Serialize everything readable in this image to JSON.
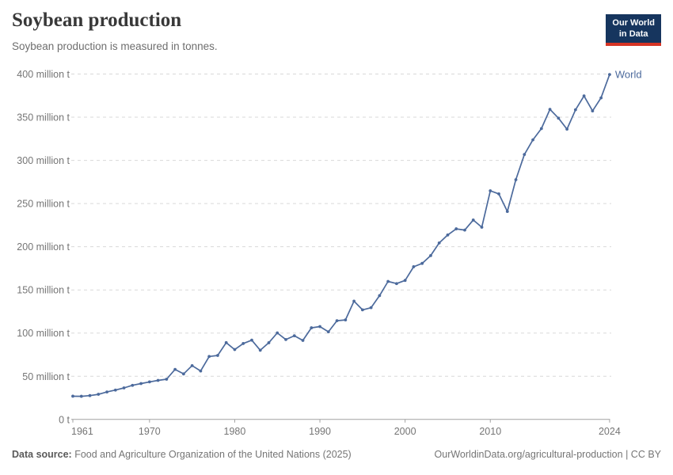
{
  "header": {
    "title": "Soybean production",
    "subtitle": "Soybean production is measured in tonnes."
  },
  "logo": {
    "line1": "Our World",
    "line2": "in Data"
  },
  "footer": {
    "source_label": "Data source:",
    "source_text": " Food and Agriculture Organization of the United Nations (2025)",
    "url": "OurWorldinData.org/agricultural-production",
    "license": " | CC BY"
  },
  "colors": {
    "line": "#4C6A9C",
    "grid": "#d9d9d9",
    "axis": "#a1a1a1",
    "tick_label": "#757575",
    "title": "#383838",
    "subtitle": "#6e6e6e",
    "logo_bg": "#16355e",
    "logo_red": "#d63424",
    "footer_text": "#757575"
  },
  "chart_data": {
    "type": "line",
    "title": "Soybean production",
    "subtitle": "Soybean production is measured in tonnes.",
    "xlabel": "",
    "ylabel": "",
    "unit": "tonnes",
    "grid": "horizontal-dashed",
    "legend": "end-of-line-label",
    "xlim": [
      1961,
      2024
    ],
    "ylim": [
      0,
      400
    ],
    "x_ticks": [
      1961,
      1970,
      1980,
      1990,
      2000,
      2010,
      2024
    ],
    "x_tick_labels": [
      "1961",
      "1970",
      "1980",
      "1990",
      "2000",
      "2010",
      "2024"
    ],
    "y_ticks": [
      0,
      50,
      100,
      150,
      200,
      250,
      300,
      350,
      400
    ],
    "y_tick_labels": [
      "0 t",
      "50 million t",
      "100 million t",
      "150 million t",
      "200 million t",
      "250 million t",
      "300 million t",
      "350 million t",
      "400 million t"
    ],
    "series": [
      {
        "name": "World",
        "color": "#4C6A9C",
        "years": [
          1961,
          1962,
          1963,
          1964,
          1965,
          1966,
          1967,
          1968,
          1969,
          1970,
          1971,
          1972,
          1973,
          1974,
          1975,
          1976,
          1977,
          1978,
          1979,
          1980,
          1981,
          1982,
          1983,
          1984,
          1985,
          1986,
          1987,
          1988,
          1989,
          1990,
          1991,
          1992,
          1993,
          1994,
          1995,
          1996,
          1997,
          1998,
          1999,
          2000,
          2001,
          2002,
          2003,
          2004,
          2005,
          2006,
          2007,
          2008,
          2009,
          2010,
          2011,
          2012,
          2013,
          2014,
          2015,
          2016,
          2017,
          2018,
          2019,
          2020,
          2021,
          2022,
          2023,
          2024
        ],
        "values_million_t": [
          26.9,
          26.8,
          27.6,
          29.1,
          31.8,
          34.0,
          36.5,
          39.5,
          41.5,
          43.5,
          45.2,
          46.6,
          57.9,
          52.7,
          62.3,
          56.1,
          72.9,
          74.1,
          88.9,
          80.9,
          87.9,
          91.8,
          80.1,
          88.8,
          100.2,
          92.5,
          96.9,
          91.5,
          106.1,
          107.5,
          101.5,
          114.3,
          115.2,
          137.0,
          126.9,
          129.4,
          143.4,
          159.8,
          157.3,
          161.0,
          176.8,
          180.7,
          189.7,
          204.4,
          213.6,
          220.7,
          219.3,
          230.9,
          222.6,
          264.8,
          261.2,
          240.8,
          277.6,
          306.8,
          323.8,
          336.8,
          359.1,
          348.9,
          336.2,
          358.6,
          374.6,
          357.3,
          372.4,
          399.4
        ]
      }
    ]
  }
}
